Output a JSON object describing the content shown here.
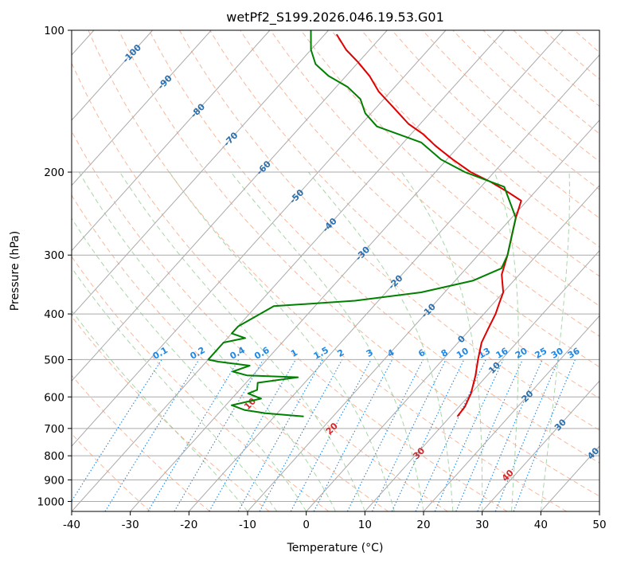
{
  "chart_data": {
    "type": "line",
    "title": "wetPf2_S199.2026.046.19.53.G01",
    "xlabel": "Temperature (°C)",
    "ylabel": "Pressure (hPa)",
    "xlim": [
      -40,
      50
    ],
    "ylim": [
      1050,
      100
    ],
    "y_scale": "log",
    "x_ticks": [
      -40,
      -30,
      -20,
      -10,
      0,
      10,
      20,
      30,
      40,
      50
    ],
    "y_ticks": [
      100,
      200,
      300,
      400,
      500,
      600,
      700,
      800,
      900,
      1000
    ],
    "grid": true,
    "colors": {
      "temperature": "#e00000",
      "dewpoint": "#008000",
      "isotherm": "#aaaaaa",
      "dry_adiabat": "#f5a07a",
      "moist_adiabat": "#8cc88c",
      "mixing_ratio": "#1e88e5",
      "isotherm_label": "#2a6fae",
      "dry_adiabat_label": "#d0282b"
    },
    "series": [
      {
        "name": "",
        "role": "temperature",
        "points": [
          [
            11.2,
            660
          ],
          [
            11.0,
            630
          ],
          [
            10.0,
            590
          ],
          [
            8.0,
            540
          ],
          [
            6.0,
            500
          ],
          [
            4.0,
            460
          ],
          [
            3.0,
            430
          ],
          [
            2.0,
            400
          ],
          [
            1.0,
            380
          ],
          [
            0.0,
            360
          ],
          [
            -3.0,
            330
          ],
          [
            -5.0,
            300
          ],
          [
            -7.5,
            270
          ],
          [
            -9.3,
            250
          ],
          [
            -11.0,
            230
          ],
          [
            -14.8,
            220
          ],
          [
            -19.0,
            210
          ],
          [
            -24.0,
            200
          ],
          [
            -29.0,
            188
          ],
          [
            -34.0,
            176
          ],
          [
            -38.0,
            166
          ],
          [
            -42.0,
            158
          ],
          [
            -47.0,
            146
          ],
          [
            -52.0,
            135
          ],
          [
            -56.0,
            125
          ],
          [
            -60.0,
            117
          ],
          [
            -64.0,
            110
          ],
          [
            -68.0,
            102
          ]
        ]
      },
      {
        "name": "",
        "role": "dewpoint",
        "points": [
          [
            -15.0,
            660
          ],
          [
            -22.0,
            650
          ],
          [
            -26.0,
            640
          ],
          [
            -29.0,
            625
          ],
          [
            -25.0,
            605
          ],
          [
            -28.0,
            590
          ],
          [
            -27.0,
            580
          ],
          [
            -28.0,
            560
          ],
          [
            -22.0,
            545
          ],
          [
            -31.0,
            540
          ],
          [
            -34.0,
            530
          ],
          [
            -32.0,
            515
          ],
          [
            -38.0,
            505
          ],
          [
            -40.0,
            500
          ],
          [
            -40.0,
            460
          ],
          [
            -37.0,
            450
          ],
          [
            -40.0,
            440
          ],
          [
            -40.0,
            425
          ],
          [
            -37.0,
            385
          ],
          [
            -24.0,
            375
          ],
          [
            -14.0,
            360
          ],
          [
            -7.0,
            340
          ],
          [
            -4.0,
            320
          ],
          [
            -5.0,
            300
          ],
          [
            -9.3,
            250
          ],
          [
            -16.0,
            215
          ],
          [
            -25.0,
            200
          ],
          [
            -31.0,
            188
          ],
          [
            -37.0,
            173
          ],
          [
            -47.0,
            160
          ],
          [
            -51.0,
            150
          ],
          [
            -54.0,
            140
          ],
          [
            -58.0,
            132
          ],
          [
            -63.0,
            125
          ],
          [
            -67.0,
            118
          ],
          [
            -70.0,
            110
          ],
          [
            -73.0,
            100
          ]
        ]
      }
    ],
    "isotherm_labels": [
      "-100",
      "-90",
      "-80",
      "-70",
      "-60",
      "-50",
      "-40",
      "-30",
      "-20",
      "-10",
      "0",
      "10",
      "20",
      "30",
      "40"
    ],
    "mixing_ratio_labels": [
      "0.1",
      "0.2",
      "0.4",
      "0.6",
      "1",
      "1.5",
      "2",
      "3",
      "4",
      "6",
      "8",
      "10",
      "13",
      "16",
      "20",
      "25",
      "30",
      "36"
    ]
  }
}
